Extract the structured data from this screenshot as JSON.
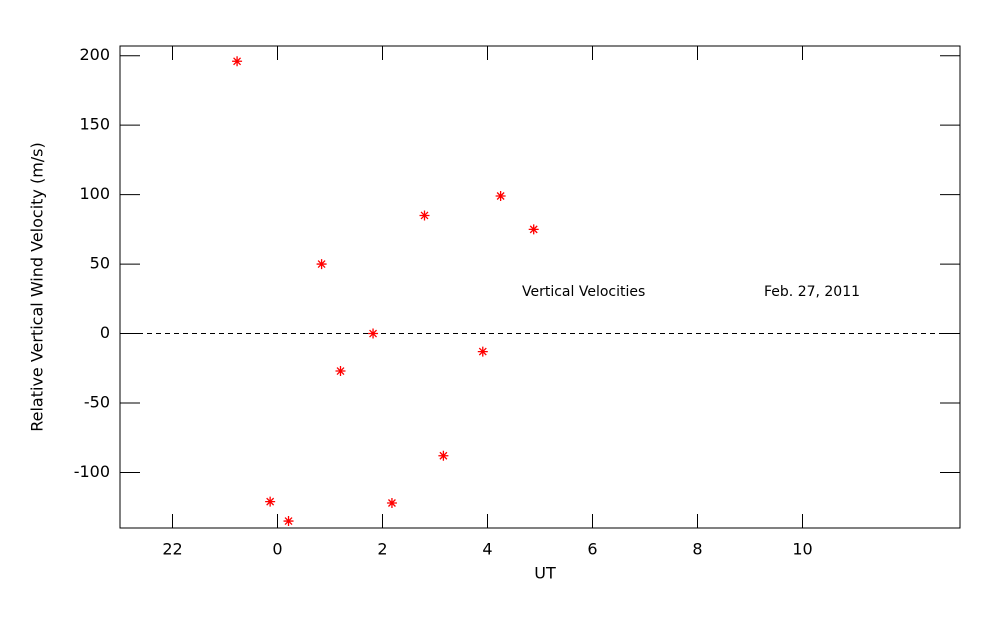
{
  "chart_data": {
    "type": "scatter",
    "xlabel": "UT",
    "ylabel": "Relative Vertical Wind Velocity (m/s)",
    "annotations": [
      "Vertical Velocities",
      "Feb. 27, 2011"
    ],
    "x": [
      23.23,
      23.86,
      24.21,
      24.84,
      25.2,
      25.82,
      26.18,
      26.8,
      27.16,
      27.91,
      28.25,
      28.88
    ],
    "series": [
      {
        "name": "Vertical Velocities",
        "color": "#ff0000",
        "values": [
          196,
          -121,
          -135,
          50,
          -27,
          0,
          -122,
          85,
          -88,
          -13,
          99,
          75
        ]
      }
    ],
    "xlim": [
      21,
      37
    ],
    "xticks": [
      22,
      {
        "value": 24,
        "label": "0"
      },
      {
        "value": 26,
        "label": "2"
      },
      {
        "value": 28,
        "label": "4"
      },
      {
        "value": 30,
        "label": "6"
      },
      {
        "value": 32,
        "label": "8"
      },
      {
        "value": 34,
        "label": "10"
      }
    ],
    "ylim": [
      -140,
      207
    ],
    "yticks": [
      -100,
      -50,
      0,
      50,
      100,
      150,
      200
    ],
    "reference_line": 0,
    "grid": false
  }
}
